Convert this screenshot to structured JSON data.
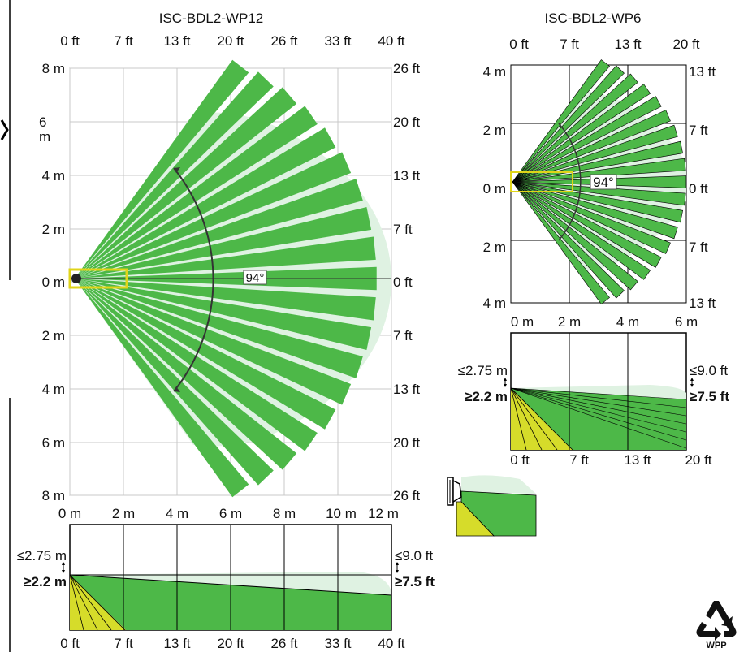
{
  "colors": {
    "zone_green": "#4db848",
    "zone_light": "#dff2e2",
    "yellow": "#d6dc2a",
    "yellow_box": "#e0d419",
    "grid": "#c8c8c8",
    "dark_grid": "#000000"
  },
  "wp12": {
    "title": "ISC-BDL2-WP12",
    "top_ft_labels": [
      "0 ft",
      "7 ft",
      "13 ft",
      "20 ft",
      "26 ft",
      "33 ft",
      "40 ft"
    ],
    "left_m_labels": [
      "8 m",
      "6 m",
      "4 m",
      "2 m",
      "0 m",
      "2 m",
      "4 m",
      "6 m",
      "8 m"
    ],
    "right_ft_labels": [
      "26 ft",
      "20 ft",
      "13 ft",
      "7 ft",
      "0 ft",
      "7 ft",
      "13 ft",
      "20 ft",
      "26 ft"
    ],
    "bottom_m_labels": [
      "0 m",
      "2 m",
      "4 m",
      "6 m",
      "8 m",
      "10 m",
      "12 m"
    ],
    "angle_label": "94°",
    "side": {
      "left_top": "≤2.75 m",
      "left_bottom": "≥2.2 m",
      "right_top": "≤9.0 ft",
      "right_bottom": "≥7.5 ft",
      "bottom_ft_labels": [
        "0 ft",
        "7 ft",
        "13 ft",
        "20 ft",
        "26 ft",
        "33 ft",
        "40 ft"
      ]
    }
  },
  "wp6": {
    "title": "ISC-BDL2-WP6",
    "top_ft_labels": [
      "0 ft",
      "7 ft",
      "13 ft",
      "20 ft"
    ],
    "left_m_labels": [
      "4 m",
      "2 m",
      "0 m",
      "2 m",
      "4 m"
    ],
    "right_ft_labels": [
      "13 ft",
      "7 ft",
      "0 ft",
      "7 ft",
      "13 ft"
    ],
    "bottom_m_labels": [
      "0 m",
      "2 m",
      "4 m",
      "6 m"
    ],
    "angle_label": "94°",
    "side": {
      "left_top": "≤2.75 m",
      "left_bottom": "≥2.2 m",
      "right_top": "≤9.0 ft",
      "right_bottom": "≥7.5 ft",
      "bottom_ft_labels": [
        "0 ft",
        "7 ft",
        "13 ft",
        "20 ft"
      ]
    }
  },
  "logo": {
    "text": "WPP",
    "icon": "recycle-icon"
  }
}
